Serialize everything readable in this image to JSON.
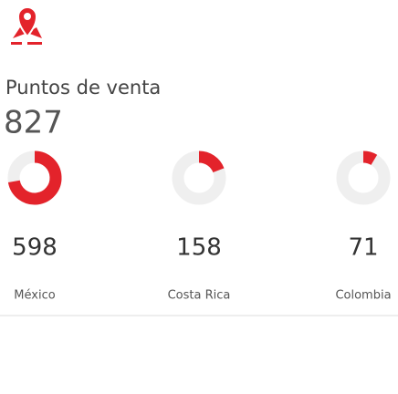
{
  "chart_data": {
    "type": "donut",
    "title": "Puntos de venta",
    "total": 827,
    "categories": [
      "México",
      "Costa Rica",
      "Colombia"
    ],
    "values": [
      598,
      158,
      71
    ],
    "color": "#e3232b",
    "track_color": "#efefef"
  }
}
